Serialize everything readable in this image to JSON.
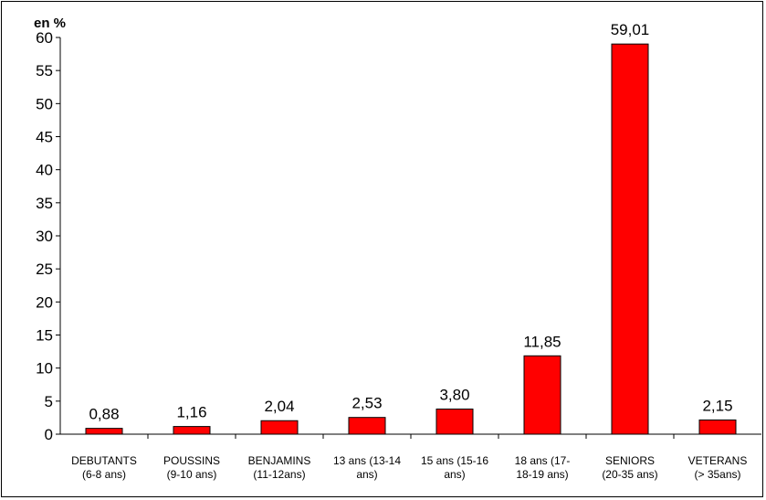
{
  "chart_data": {
    "type": "bar",
    "unit_label": "en %",
    "categories": [
      [
        "DEBUTANTS",
        "(6-8 ans)"
      ],
      [
        "POUSSINS",
        "(9-10 ans)"
      ],
      [
        "BENJAMINS",
        "(11-12ans)"
      ],
      [
        "13 ans (13-14",
        "ans)"
      ],
      [
        "15 ans (15-16",
        "ans)"
      ],
      [
        "18 ans (17-",
        "18-19 ans)"
      ],
      [
        "SENIORS",
        "(20-35 ans)"
      ],
      [
        "VETERANS",
        "(> 35ans)"
      ]
    ],
    "values": [
      0.88,
      1.16,
      2.04,
      2.53,
      3.8,
      11.85,
      59.01,
      2.15
    ],
    "value_labels": [
      "0,88",
      "1,16",
      "2,04",
      "2,53",
      "3,80",
      "11,85",
      "59,01",
      "2,15"
    ],
    "yticks": [
      0,
      5,
      10,
      15,
      20,
      25,
      30,
      35,
      40,
      45,
      50,
      55,
      60
    ],
    "ylim": [
      0,
      60
    ],
    "bar_color": "#ff0000",
    "grid": false,
    "legend": "none"
  }
}
